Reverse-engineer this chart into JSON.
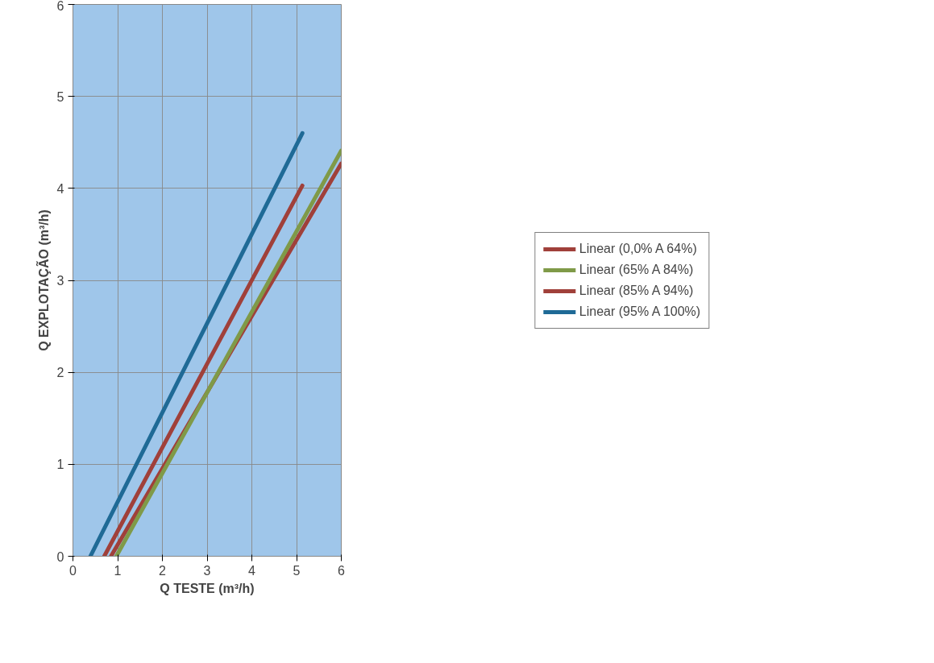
{
  "chart_data": {
    "type": "line",
    "xlabel": "Q TESTE (m³/h)",
    "ylabel": "Q EXPLOTAÇÃO (m³/h)",
    "xlim": [
      0,
      6
    ],
    "ylim": [
      0,
      6
    ],
    "xticks": [
      0,
      1,
      2,
      3,
      4,
      5,
      6
    ],
    "yticks": [
      0,
      1,
      2,
      3,
      4,
      5,
      6
    ],
    "grid": true,
    "legend": "right",
    "marker": "none",
    "line_style": "solid",
    "series": [
      {
        "name": "Linear (0,0% A 64%)",
        "color": "#a0403a",
        "x": [
          0.85,
          6
        ],
        "values": [
          0,
          4.27
        ]
      },
      {
        "name": "Linear (65% A 84%)",
        "color": "#7f9a48",
        "x": [
          0.97,
          6
        ],
        "values": [
          0,
          4.41
        ]
      },
      {
        "name": "Linear (85% A 94%)",
        "color": "#a0403a",
        "x": [
          0.7,
          5.13
        ],
        "values": [
          0,
          4.03
        ]
      },
      {
        "name": "Linear (95% A 100%)",
        "color": "#1f6a96",
        "x": [
          0.39,
          5.13
        ],
        "values": [
          0,
          4.6
        ]
      }
    ]
  }
}
